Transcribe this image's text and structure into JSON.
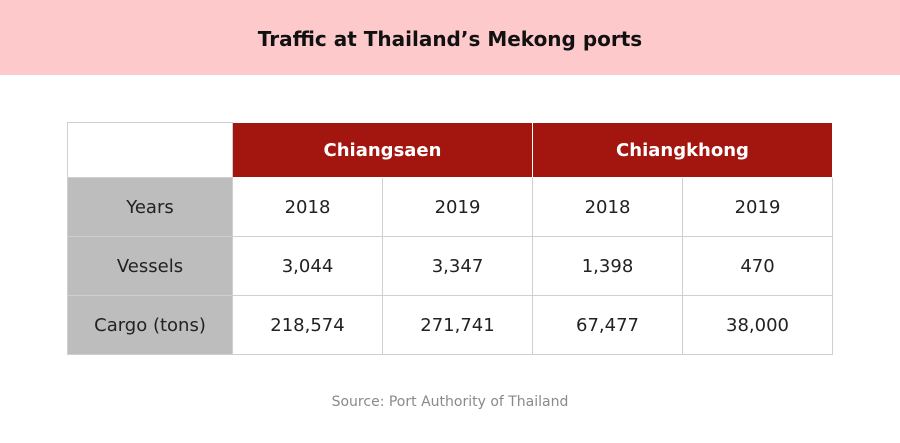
{
  "header": {
    "title": "Traffic at Thailand’s Mekong ports"
  },
  "table": {
    "groups": [
      "Chiangsaen",
      "Chiangkhong"
    ],
    "rows": [
      [
        "Years",
        "2018",
        "2019",
        "2018",
        "2019"
      ],
      [
        "Vessels",
        "3,044",
        "3,347",
        "1,398",
        "470"
      ],
      [
        "Cargo (tons)",
        "218,574",
        "271,741",
        "67,477",
        "38,000"
      ]
    ]
  },
  "footer": {
    "source": "Source: Port Authority of Thailand"
  }
}
